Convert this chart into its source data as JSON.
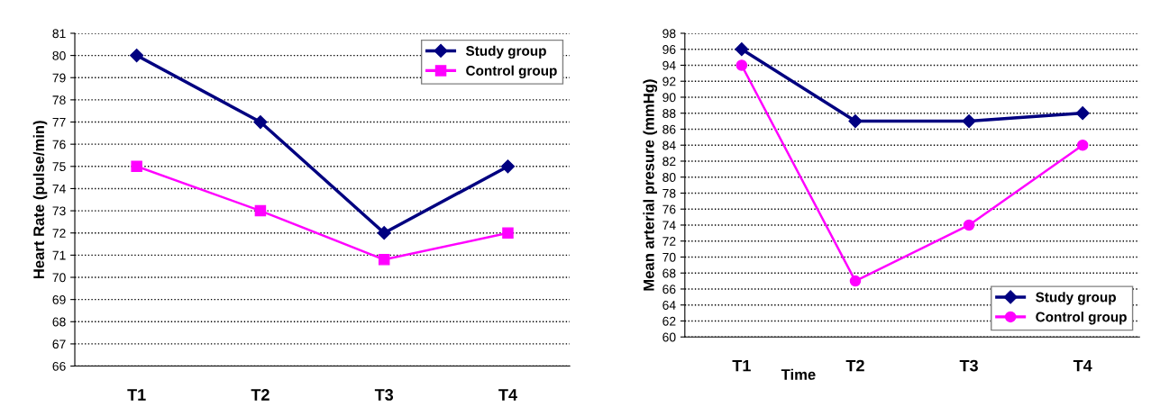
{
  "chart_data": [
    {
      "type": "line",
      "ylabel": "Heart Rate (pulse/min)",
      "categories": [
        "T1",
        "T2",
        "T3",
        "T4"
      ],
      "ylim": [
        66,
        81
      ],
      "yticks": [
        66,
        67,
        68,
        69,
        70,
        71,
        72,
        73,
        74,
        75,
        76,
        77,
        78,
        79,
        80,
        81
      ],
      "grid": "y",
      "legend": "top right",
      "series": [
        {
          "name": "Study group",
          "color": "#000080",
          "marker": "diamond",
          "values": [
            80,
            77,
            72,
            75
          ]
        },
        {
          "name": "Control group",
          "color": "#ff00ff",
          "marker": "square",
          "values": [
            75,
            73,
            70.8,
            72
          ]
        }
      ]
    },
    {
      "type": "line",
      "ylabel": "Mean arterial presure (mmHg)",
      "xlabel": "Time",
      "categories": [
        "T1",
        "T2",
        "T3",
        "T4"
      ],
      "ylim": [
        60,
        98
      ],
      "yticks": [
        60,
        62,
        64,
        66,
        68,
        70,
        72,
        74,
        76,
        78,
        80,
        82,
        84,
        86,
        88,
        90,
        92,
        94,
        96,
        98
      ],
      "grid": "y",
      "legend": "bottom right",
      "series": [
        {
          "name": "Study group",
          "color": "#000080",
          "marker": "diamond",
          "values": [
            96,
            87,
            87,
            88
          ]
        },
        {
          "name": "Control group",
          "color": "#ff00ff",
          "marker": "circle",
          "values": [
            94,
            67,
            74,
            84
          ]
        }
      ]
    }
  ]
}
